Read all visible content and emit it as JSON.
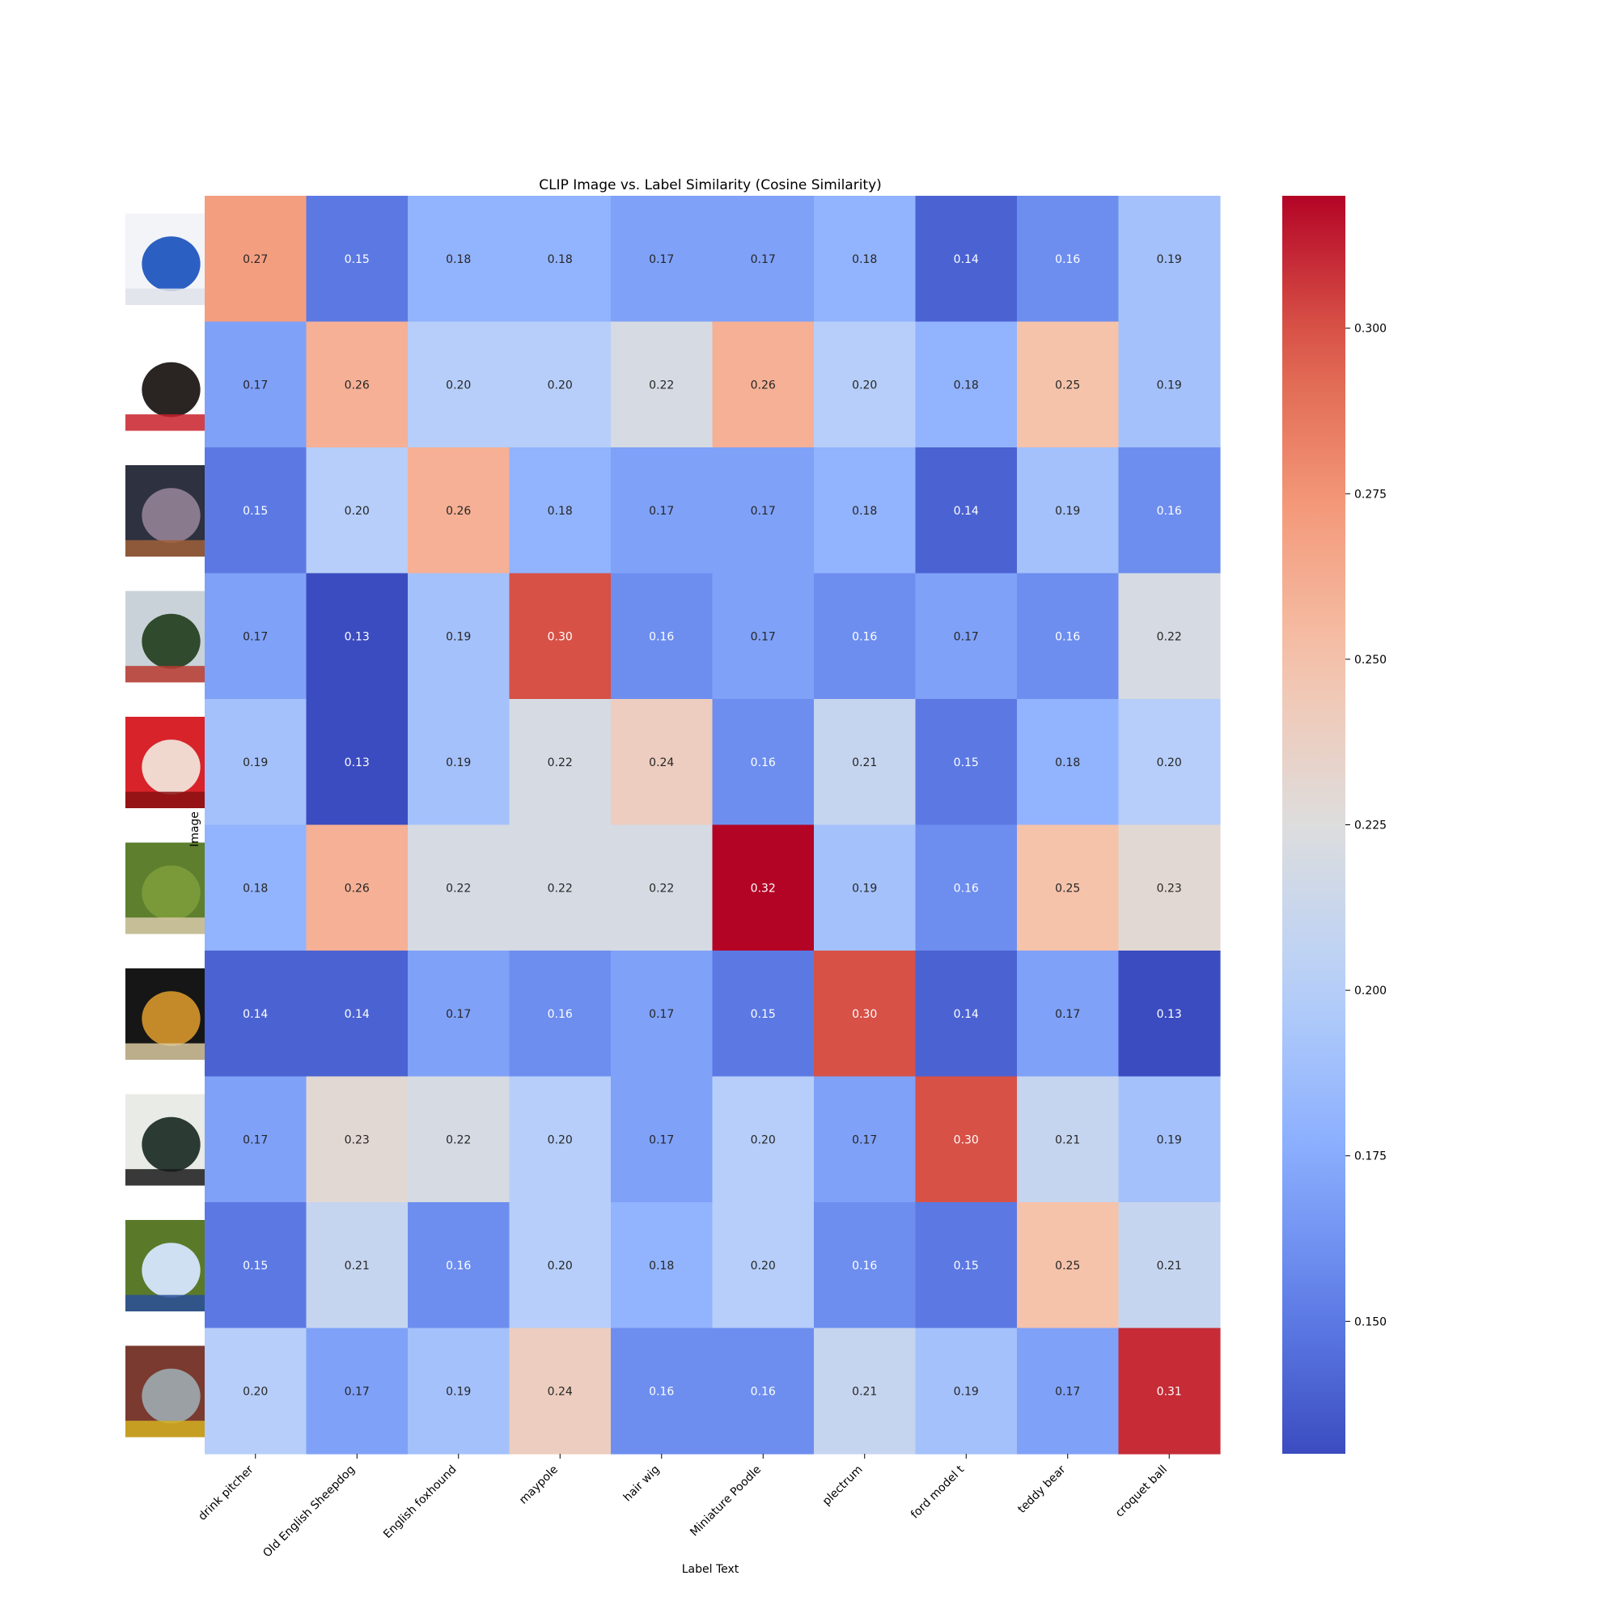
{
  "chart_data": {
    "type": "heatmap",
    "title": "CLIP Image vs. Label Similarity (Cosine Similarity)",
    "xlabel": "Label Text",
    "ylabel": "Image",
    "columns": [
      "drink pitcher",
      "Old English Sheepdog",
      "English foxhound",
      "maypole",
      "hair wig",
      "Miniature Poodle",
      "plectrum",
      "ford model t",
      "teddy bear",
      "croquet ball"
    ],
    "rows": [
      {
        "image": "blue-pitcher-photo",
        "values": [
          0.27,
          0.15,
          0.18,
          0.18,
          0.17,
          0.17,
          0.18,
          0.14,
          0.16,
          0.19
        ]
      },
      {
        "image": "dog-on-red-cushion-photo",
        "values": [
          0.17,
          0.26,
          0.2,
          0.2,
          0.22,
          0.26,
          0.2,
          0.18,
          0.25,
          0.19
        ]
      },
      {
        "image": "people-with-hound-photo",
        "values": [
          0.15,
          0.2,
          0.26,
          0.18,
          0.17,
          0.17,
          0.18,
          0.14,
          0.19,
          0.16
        ]
      },
      {
        "image": "maypole-photo",
        "values": [
          0.17,
          0.13,
          0.19,
          0.3,
          0.16,
          0.17,
          0.16,
          0.17,
          0.16,
          0.22
        ]
      },
      {
        "image": "red-haired-doll-photo",
        "values": [
          0.19,
          0.13,
          0.19,
          0.22,
          0.24,
          0.16,
          0.21,
          0.15,
          0.18,
          0.2
        ]
      },
      {
        "image": "poodle-on-grass-photo",
        "values": [
          0.18,
          0.26,
          0.22,
          0.22,
          0.22,
          0.32,
          0.19,
          0.16,
          0.25,
          0.23
        ]
      },
      {
        "image": "guitar-plectrum-photo",
        "values": [
          0.14,
          0.14,
          0.17,
          0.16,
          0.17,
          0.15,
          0.3,
          0.14,
          0.17,
          0.13
        ]
      },
      {
        "image": "vintage-car-photo",
        "values": [
          0.17,
          0.23,
          0.22,
          0.2,
          0.17,
          0.2,
          0.17,
          0.3,
          0.21,
          0.19
        ]
      },
      {
        "image": "teddy-bears-photo",
        "values": [
          0.15,
          0.21,
          0.16,
          0.2,
          0.18,
          0.2,
          0.16,
          0.15,
          0.25,
          0.21
        ]
      },
      {
        "image": "croquet-ball-photo",
        "values": [
          0.2,
          0.17,
          0.19,
          0.24,
          0.16,
          0.16,
          0.21,
          0.19,
          0.17,
          0.31
        ]
      }
    ],
    "colormap": "coolwarm",
    "colorbar": {
      "range": [
        0.13,
        0.32
      ],
      "ticks": [
        0.15,
        0.175,
        0.2,
        0.225,
        0.25,
        0.275,
        0.3
      ],
      "tick_labels": [
        "0.150",
        "0.175",
        "0.200",
        "0.225",
        "0.250",
        "0.275",
        "0.300"
      ]
    },
    "annotations": "cell values shown with 2 decimals"
  }
}
